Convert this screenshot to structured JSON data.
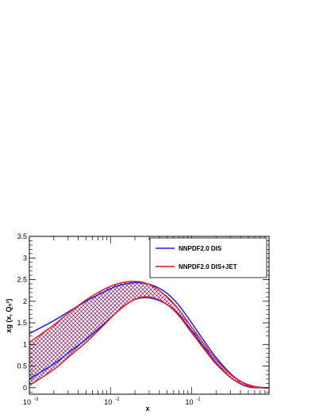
{
  "chart_data": {
    "type": "line",
    "title": "",
    "xlabel": "x",
    "ylabel": "xg (x, Q₀²)",
    "xscale": "log",
    "xlim": [
      0.001,
      0.9
    ],
    "ylim": [
      -0.15,
      3.5
    ],
    "x_tick_labels": [
      {
        "value": 0.001,
        "base": "10",
        "exp": "-3"
      },
      {
        "value": 0.01,
        "base": "10",
        "exp": "-2"
      },
      {
        "value": 0.1,
        "base": "10",
        "exp": "-1"
      }
    ],
    "y_tick_labels": [
      "0",
      "0.5",
      "1",
      "1.5",
      "2",
      "2.5",
      "3",
      "3.5"
    ],
    "y_tick_values": [
      0,
      0.5,
      1,
      1.5,
      2,
      2.5,
      3,
      3.5
    ],
    "legend_position": "top-right",
    "series": [
      {
        "name": "NNPDF2.0 DIS",
        "color": "#1f1fe6",
        "style": "band-outline",
        "x": [
          0.001,
          0.002,
          0.003,
          0.005,
          0.008,
          0.012,
          0.018,
          0.025,
          0.035,
          0.05,
          0.07,
          0.1,
          0.15,
          0.2,
          0.3,
          0.4,
          0.5,
          0.6,
          0.7,
          0.8,
          0.9
        ],
        "upper": [
          1.25,
          1.55,
          1.75,
          2.0,
          2.2,
          2.35,
          2.42,
          2.42,
          2.35,
          2.18,
          1.9,
          1.5,
          1.02,
          0.7,
          0.33,
          0.15,
          0.06,
          0.02,
          0.01,
          0.0,
          0.0
        ],
        "lower": [
          0.2,
          0.55,
          0.8,
          1.12,
          1.45,
          1.75,
          2.0,
          2.08,
          2.05,
          1.92,
          1.68,
          1.32,
          0.88,
          0.58,
          0.24,
          0.09,
          0.02,
          0.0,
          0.0,
          0.0,
          0.0
        ]
      },
      {
        "name": "NNPDF2.0 DIS+JET",
        "color": "#e61f1f",
        "style": "band-outline-hatched",
        "x": [
          0.001,
          0.002,
          0.003,
          0.005,
          0.008,
          0.012,
          0.018,
          0.025,
          0.035,
          0.05,
          0.07,
          0.1,
          0.15,
          0.2,
          0.3,
          0.4,
          0.5,
          0.6,
          0.7,
          0.8,
          0.9
        ],
        "upper": [
          1.05,
          1.45,
          1.72,
          2.03,
          2.26,
          2.4,
          2.46,
          2.44,
          2.32,
          2.1,
          1.8,
          1.4,
          0.95,
          0.65,
          0.31,
          0.15,
          0.07,
          0.03,
          0.01,
          0.0,
          0.0
        ],
        "lower": [
          0.05,
          0.42,
          0.7,
          1.05,
          1.42,
          1.75,
          2.0,
          2.1,
          2.07,
          1.92,
          1.66,
          1.27,
          0.84,
          0.55,
          0.24,
          0.1,
          0.03,
          0.01,
          0.0,
          0.0,
          0.0
        ]
      }
    ]
  }
}
